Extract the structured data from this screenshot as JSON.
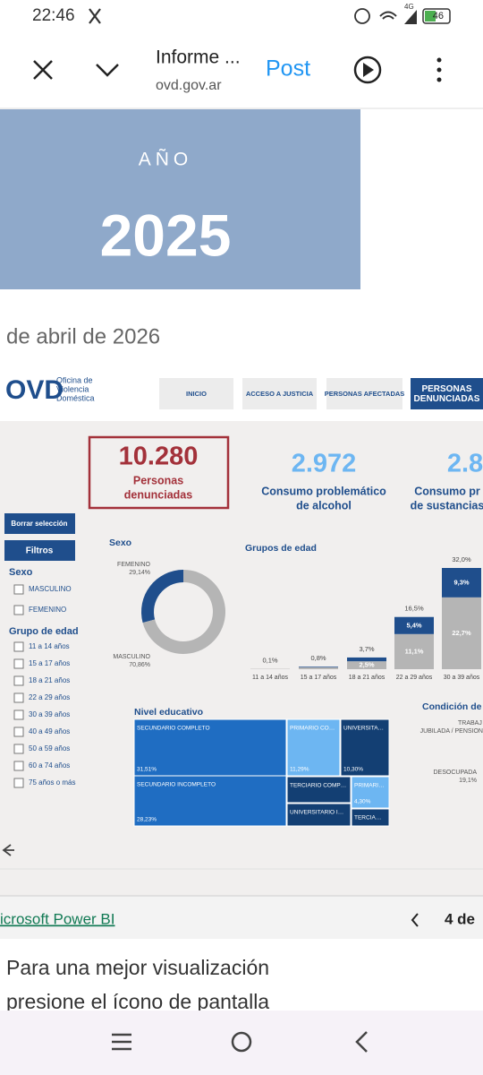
{
  "status_bar": {
    "time": "22:46",
    "network": "4G",
    "battery": "46"
  },
  "toolbar": {
    "title": "Informe ...",
    "domain": "ovd.gov.ar",
    "post": "Post"
  },
  "banner": {
    "label": "AÑO",
    "year": "2025"
  },
  "date_fragment": "de abril de 2026",
  "dashboard": {
    "logo": "OVD",
    "logo_text": [
      "Oficina de",
      "Violencia",
      "Doméstica"
    ],
    "nav": [
      {
        "lines": [
          "INICIO"
        ]
      },
      {
        "lines": [
          "ACCESO A JUSTICIA"
        ]
      },
      {
        "lines": [
          "PERSONAS AFECTADAS"
        ]
      },
      {
        "lines": [
          "PERSONAS",
          "DENUNCIADAS"
        ]
      }
    ],
    "kpis": [
      {
        "value": "10.280",
        "label": [
          "Personas",
          "denunciadas"
        ]
      },
      {
        "value": "2.972",
        "label": [
          "Consumo problemático",
          "de alcohol"
        ]
      },
      {
        "value": "2.8",
        "label": [
          "Consumo pr",
          "de sustancias"
        ]
      }
    ],
    "filters": {
      "clear": "Borrar selección",
      "title": "Filtros",
      "sexo": {
        "title": "Sexo",
        "options": [
          "MASCULINO",
          "FEMENINO"
        ]
      },
      "edad": {
        "title": "Grupo de edad",
        "options": [
          "11 a 14 años",
          "15 a 17 años",
          "18 a 21 años",
          "22 a 29 años",
          "30 a 39 años",
          "40 a 49 años",
          "50 a 59 años",
          "60 a 74 años",
          "75 años o más"
        ]
      }
    },
    "sexo_chart": {
      "type": "pie",
      "title": "Sexo",
      "categories": [
        "FEMENINO",
        "MASCULINO"
      ],
      "values": [
        29.14,
        70.86
      ],
      "value_labels": [
        "29,14%",
        "70,86%"
      ],
      "colors": [
        "#1f4e8c",
        "#b5b5b5"
      ]
    },
    "edad_chart": {
      "type": "bar",
      "title": "Grupos de edad",
      "categories": [
        "11 a 14 años",
        "15 a 17 años",
        "18 a 21 años",
        "22 a 29 años",
        "30 a 39 años"
      ],
      "totals": [
        0.1,
        0.8,
        3.7,
        16.5,
        32.0
      ],
      "total_labels": [
        "0,1%",
        "0,8%",
        "3,7%",
        "16,5%",
        "32,0%"
      ],
      "series": [
        {
          "color": "#b5b5b5",
          "values": [
            0.1,
            0.6,
            2.5,
            11.1,
            22.7
          ],
          "value_labels": [
            null,
            null,
            "2,5%",
            "11,1%",
            "22,7%"
          ]
        },
        {
          "color": "#1f4e8c",
          "values": [
            0,
            0.2,
            1.2,
            5.4,
            9.3
          ],
          "value_labels": [
            null,
            null,
            null,
            "5,4%",
            "9,3%"
          ]
        }
      ]
    },
    "treemap": {
      "type": "treemap",
      "title": "Nivel educativo",
      "cells": [
        {
          "label": "SECUNDARIO COMPLETO",
          "value": 31.51,
          "value_label": "31,51%",
          "color": "#1f6dc2"
        },
        {
          "label": "SECUNDARIO INCOMPLETO",
          "value": 28.23,
          "value_label": "28,23%",
          "color": "#1f6dc2"
        },
        {
          "label": "PRIMARIO CO…",
          "value": 11.29,
          "value_label": "11,29%",
          "color": "#6db6f2"
        },
        {
          "label": "UNIVERSITA…",
          "value": 10.3,
          "value_label": "10,30%",
          "color": "#133f73"
        },
        {
          "label": "TERCIARIO COMP…",
          "color": "#133f73"
        },
        {
          "label": "UNIVERSITARIO I…",
          "color": "#133f73"
        },
        {
          "label": "PRIMARI…",
          "value": 4.3,
          "value_label": "4,30%",
          "color": "#6db6f2"
        },
        {
          "label": "TERCIA…",
          "color": "#133f73"
        }
      ]
    },
    "condicion": {
      "title": "Condición de a",
      "labels": [
        "TRABAJ",
        "JUBILADA / PENSION",
        "DESOCUPADA"
      ],
      "value_labels": [
        "19,1%"
      ]
    }
  },
  "footer": {
    "brand": "icrosoft Power BI",
    "page": "4 de"
  },
  "body_text": [
    "Para una mejor visualización",
    "presione el ícono de pantalla"
  ]
}
